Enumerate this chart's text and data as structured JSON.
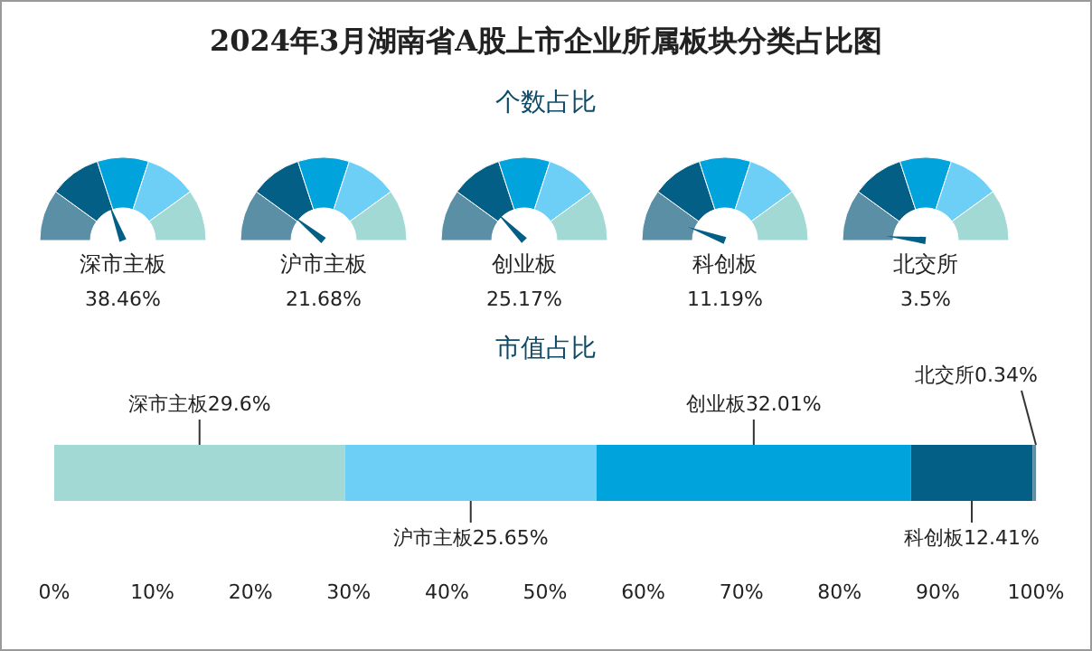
{
  "chart_data": [
    {
      "type": "other",
      "title": "2024年3月湖南省A股上市企业所属板块分类占比图",
      "subtitle": "个数占比",
      "categories": [
        "深市主板",
        "沪市主板",
        "创业板",
        "科创板",
        "北交所"
      ],
      "values": [
        38.46,
        21.68,
        25.17,
        11.19,
        3.5
      ],
      "value_labels": [
        "38.46%",
        "21.68%",
        "25.17%",
        "11.19%",
        "3.5%"
      ],
      "colors": [
        "#5a8fa6",
        "#035f85",
        "#00a3dc",
        "#6dcff6",
        "#a3d9d5"
      ],
      "needle": true
    },
    {
      "type": "bar",
      "orientation": "horizontal",
      "stacked": true,
      "title": "市值占比",
      "categories": [
        null
      ],
      "xlim": [
        0,
        100
      ],
      "xticks": [
        {
          "value": 0,
          "label": "0%"
        },
        {
          "value": 10,
          "label": "10%"
        },
        {
          "value": 20,
          "label": "20%"
        },
        {
          "value": 30,
          "label": "30%"
        },
        {
          "value": 40,
          "label": "40%"
        },
        {
          "value": 50,
          "label": "50%"
        },
        {
          "value": 60,
          "label": "60%"
        },
        {
          "value": 70,
          "label": "70%"
        },
        {
          "value": 80,
          "label": "80%"
        },
        {
          "value": 90,
          "label": "90%"
        },
        {
          "value": 100,
          "label": "100%"
        }
      ],
      "series": [
        {
          "name": "深市主板",
          "color": "#a3d9d5",
          "values": [
            29.6
          ],
          "value_labels": [
            "29.6%"
          ]
        },
        {
          "name": "沪市主板",
          "color": "#6dcff6",
          "values": [
            25.65
          ],
          "value_labels": [
            "25.65%"
          ]
        },
        {
          "name": "创业板",
          "color": "#00a3dc",
          "values": [
            32.01
          ],
          "value_labels": [
            "32.01%"
          ]
        },
        {
          "name": "科创板",
          "color": "#035f85",
          "values": [
            12.41
          ],
          "value_labels": [
            "12.41%"
          ]
        },
        {
          "name": "北交所",
          "color": "#5a8fa6",
          "values": [
            0.34
          ],
          "value_labels": [
            "0.34%"
          ]
        }
      ],
      "grid": false
    }
  ]
}
